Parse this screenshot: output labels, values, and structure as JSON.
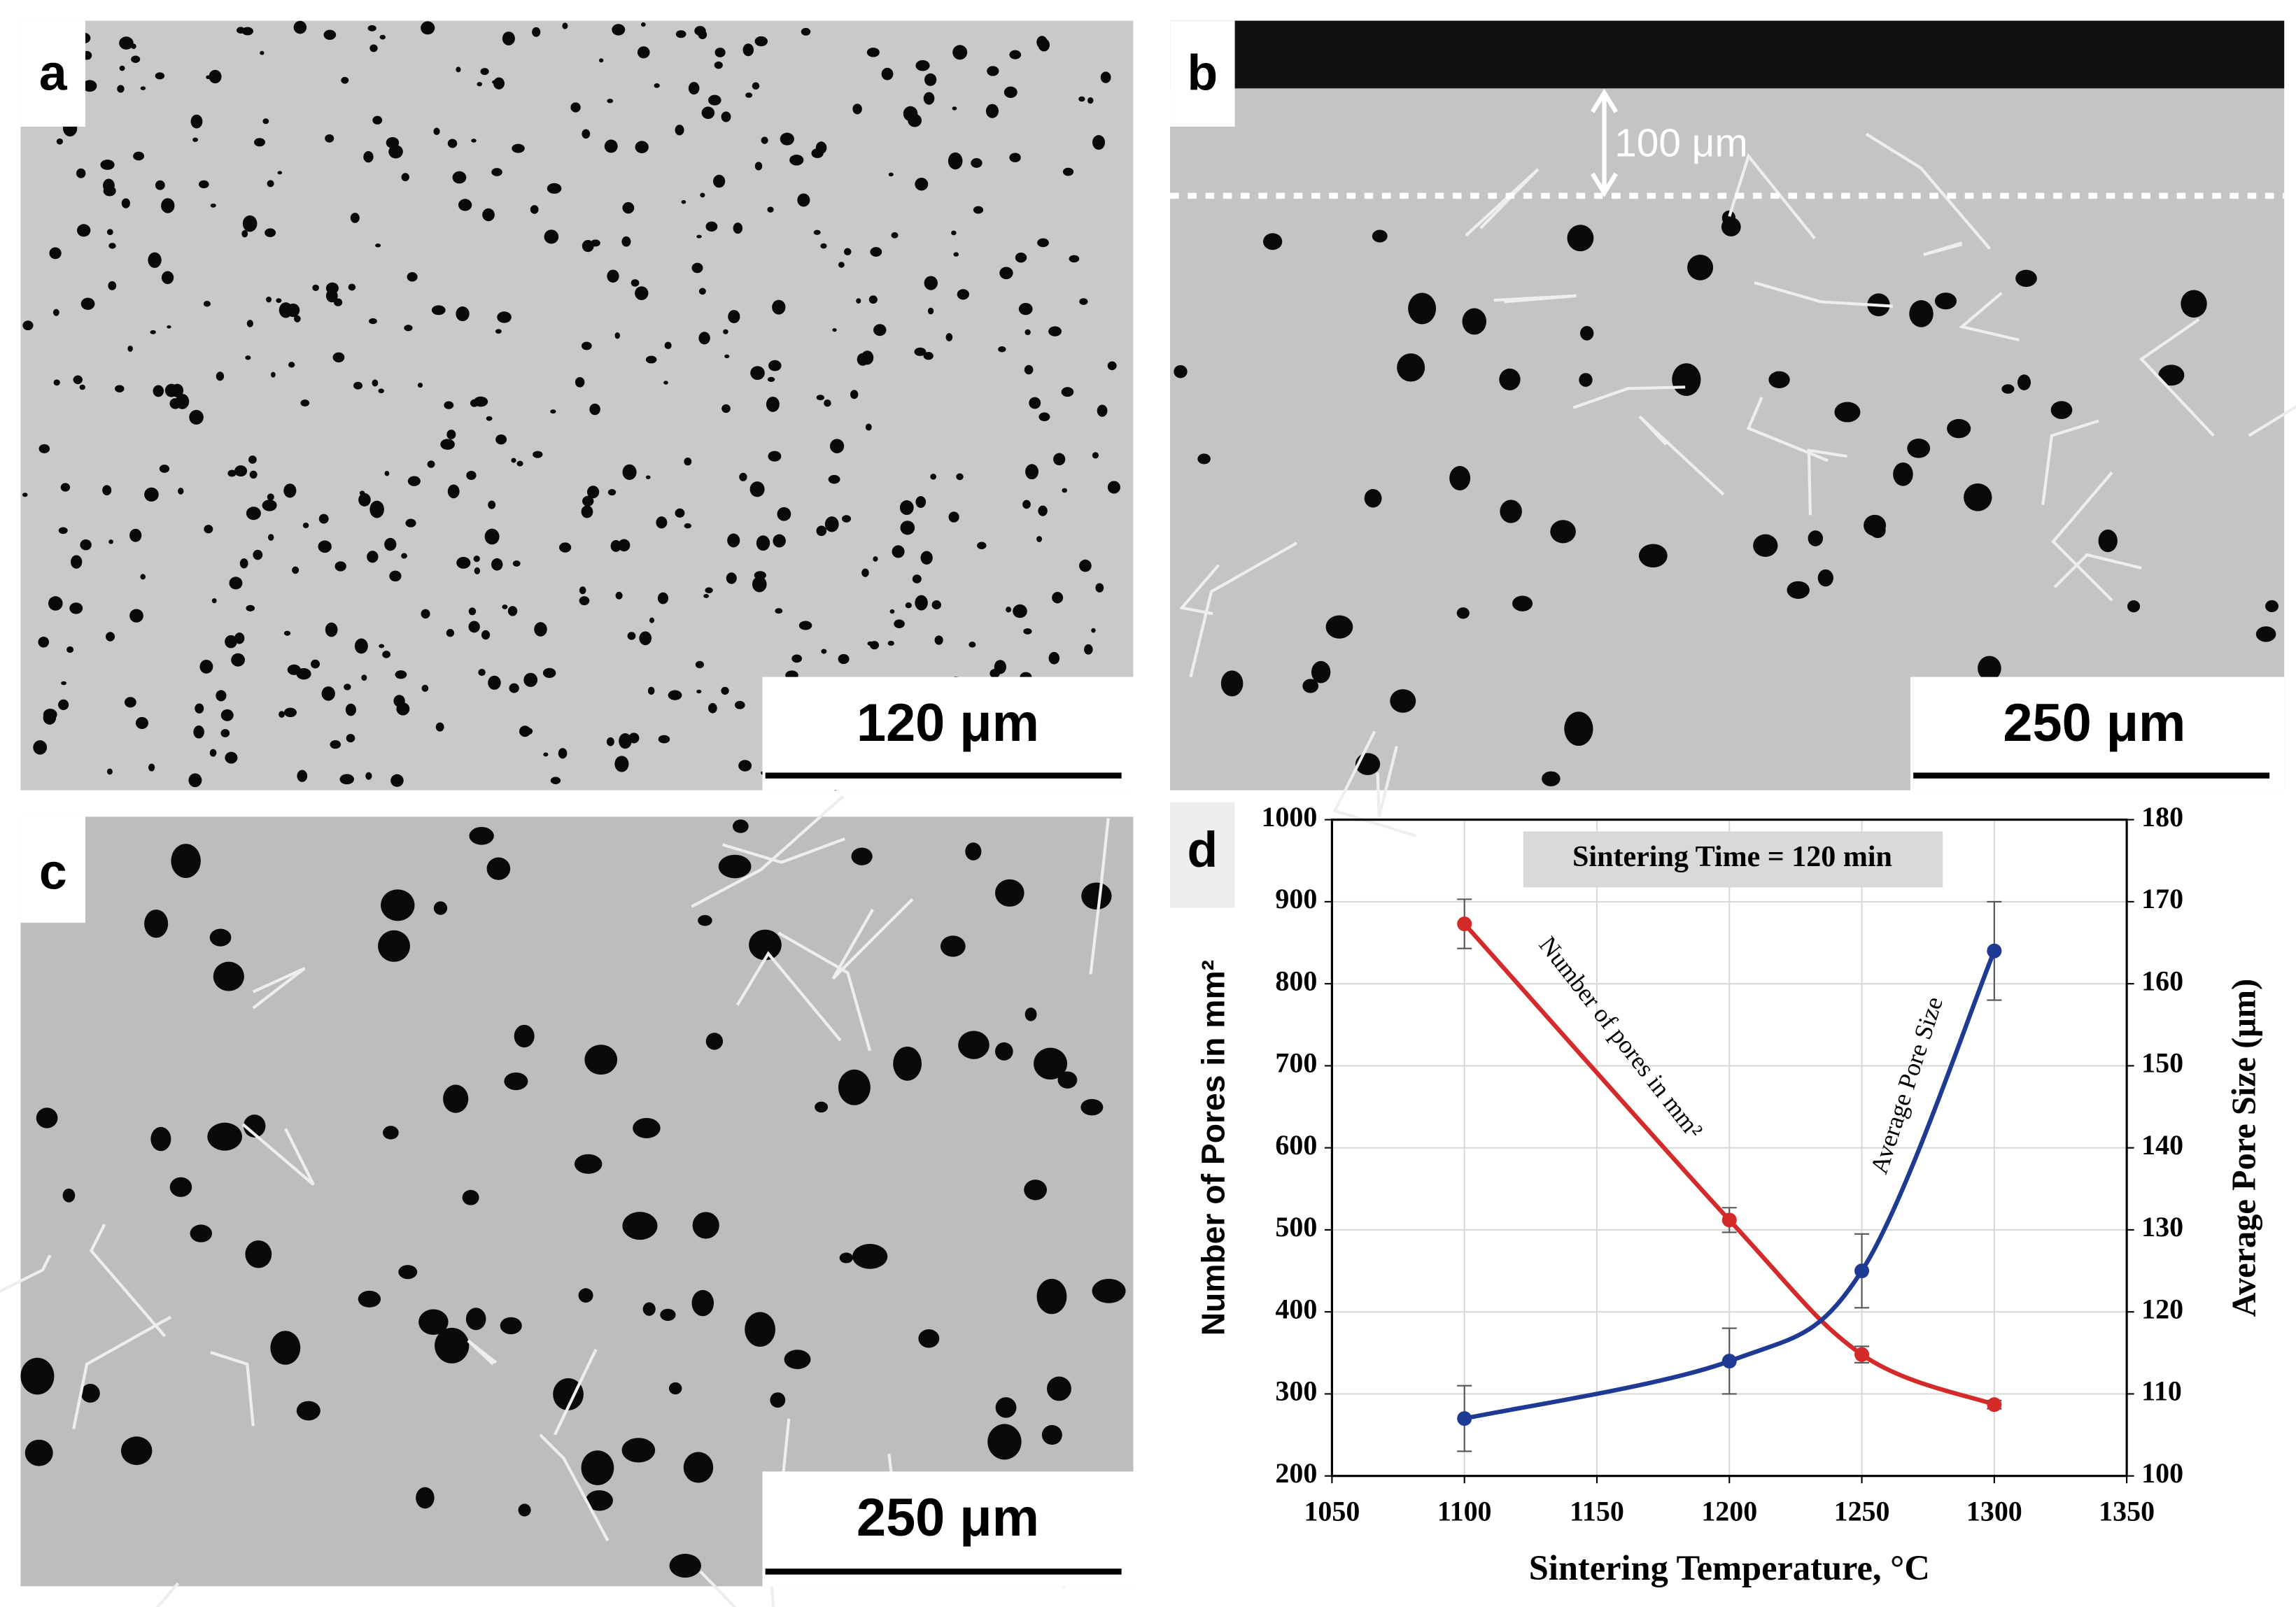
{
  "panels": [
    {
      "label": "a",
      "scale_bar": "120 μm"
    },
    {
      "label": "b",
      "scale_bar": "250 μm",
      "depth_marker": "100 μm"
    },
    {
      "label": "c",
      "scale_bar": "250 μm"
    },
    {
      "label": "d"
    }
  ],
  "chart_data": {
    "type": "line",
    "annotation": "Sintering Time = 120 min",
    "xlabel": "Sintering Temperature, °C",
    "ylabel": "Number of Pores in mm²",
    "y2label": "Average Pore Size (μm)",
    "x": [
      1100,
      1200,
      1250,
      1300
    ],
    "series": [
      {
        "name": "Number of pores in mm²",
        "color": "#d42a2a",
        "values": [
          873,
          512,
          348,
          287
        ],
        "errors": [
          30,
          15,
          10,
          5
        ]
      },
      {
        "name": "Average Pore Size",
        "color": "#1f3a93",
        "axis": "y2",
        "values": [
          107,
          114,
          125,
          164
        ],
        "errors": [
          4,
          4,
          4.5,
          6
        ]
      }
    ],
    "xlim": [
      1050,
      1350
    ],
    "xticks": [
      1050,
      1100,
      1150,
      1200,
      1250,
      1300,
      1350
    ],
    "ylim": [
      200,
      1000
    ],
    "yticks": [
      200,
      300,
      400,
      500,
      600,
      700,
      800,
      900,
      1000
    ],
    "y2lim": [
      100,
      180
    ],
    "y2ticks": [
      100,
      110,
      120,
      130,
      140,
      150,
      160,
      170,
      180
    ],
    "grid": true
  }
}
